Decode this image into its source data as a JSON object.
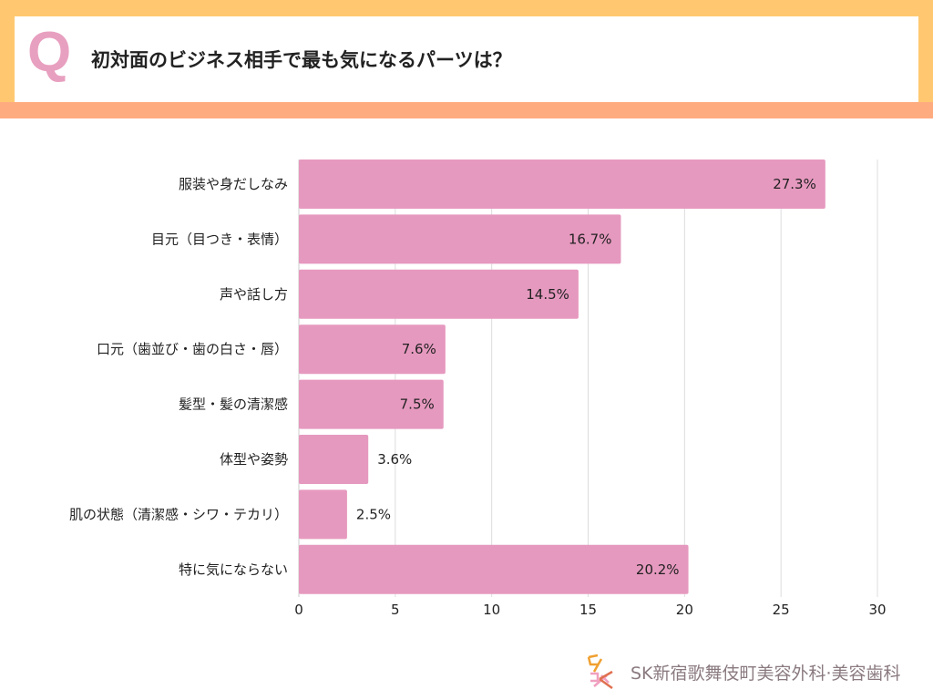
{
  "header": {
    "q_mark": "Q",
    "title": "初対面のビジネス相手で最も気になるパーツは？"
  },
  "footer": {
    "logo_text": "SK新宿歌舞伎町美容外科·美容歯科"
  },
  "colors": {
    "bar": "#e699bf",
    "banner_top": "#ffc870",
    "banner_bottom": "#ffab80",
    "q": "#e8a0c0"
  },
  "chart_data": {
    "type": "bar",
    "orientation": "horizontal",
    "categories": [
      "服装や身だしなみ",
      "目元（目つき・表情）",
      "声や話し方",
      "口元（歯並び・歯の白さ・唇）",
      "髪型・髪の清潔感",
      "体型や姿勢",
      "肌の状態（清潔感・シワ・テカリ）",
      "特に気にならない"
    ],
    "values": [
      27.3,
      16.7,
      14.5,
      7.6,
      7.5,
      3.6,
      2.5,
      20.2
    ],
    "value_labels": [
      "27.3%",
      "16.7%",
      "14.5%",
      "7.6%",
      "7.5%",
      "3.6%",
      "2.5%",
      "20.2%"
    ],
    "xlim": [
      0,
      30
    ],
    "xticks": [
      "0",
      "5",
      "10",
      "15",
      "20",
      "25",
      "30"
    ],
    "grid": true
  }
}
